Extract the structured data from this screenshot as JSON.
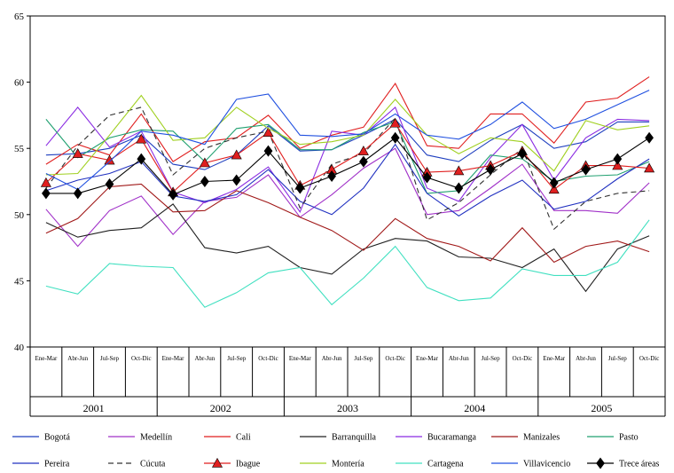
{
  "chart_data": {
    "type": "line",
    "title": "",
    "xlabel": "",
    "ylabel": "",
    "ylim": [
      40,
      65
    ],
    "yticks": [
      40,
      45,
      50,
      55,
      60,
      65
    ],
    "grid": false,
    "legend": "bottom",
    "x": [
      "Ene-Mar",
      "Abr-Jun",
      "Jul-Sep",
      "Oct-Dic",
      "Ene-Mar",
      "Abr-Jun",
      "Jul-Sep",
      "Oct-Dic",
      "Ene-Mar",
      "Abr-Jun",
      "Jul-Sep",
      "Oct-Dic",
      "Ene-Mar",
      "Abr-Jun",
      "Jul-Sep",
      "Oct-Dic",
      "Ene-Mar",
      "Abr-Jun",
      "Jul-Sep",
      "Oct-Dic"
    ],
    "years": [
      "2001",
      "2002",
      "2003",
      "2004",
      "2005"
    ],
    "series": [
      {
        "name": "Bogotá",
        "color": "#1f3fbf",
        "dash": "",
        "marker": "none",
        "values": [
          54.5,
          54.6,
          55.0,
          56.0,
          53.8,
          53.4,
          54.5,
          56.7,
          54.8,
          54.9,
          56.0,
          57.2,
          54.5,
          54.0,
          55.6,
          56.8,
          55.0,
          55.5,
          57.0,
          57.0
        ]
      },
      {
        "name": "Medellín",
        "color": "#a030c8",
        "dash": "",
        "marker": "none",
        "values": [
          50.4,
          47.6,
          50.3,
          51.4,
          48.5,
          51.0,
          51.3,
          53.0,
          49.8,
          51.5,
          53.5,
          55.0,
          50.0,
          50.3,
          52.0,
          53.8,
          50.3,
          50.3,
          50.1,
          52.4
        ]
      },
      {
        "name": "Cali",
        "color": "#e01f1f",
        "dash": "",
        "marker": "none",
        "values": [
          53.8,
          55.3,
          54.5,
          57.6,
          54.0,
          55.5,
          55.8,
          57.5,
          55.0,
          56.0,
          56.6,
          59.9,
          55.2,
          55.0,
          57.6,
          57.6,
          55.4,
          58.5,
          58.8,
          60.4
        ]
      },
      {
        "name": "Barranquilla",
        "color": "#202020",
        "dash": "",
        "marker": "none",
        "values": [
          49.4,
          48.3,
          48.8,
          49.0,
          50.8,
          47.5,
          47.1,
          47.6,
          46.0,
          45.5,
          47.4,
          48.2,
          48.0,
          46.8,
          46.7,
          46.0,
          47.4,
          44.2,
          47.4,
          48.4
        ]
      },
      {
        "name": "Bucaramanga",
        "color": "#8a2be2",
        "dash": "",
        "marker": "none",
        "values": [
          55.2,
          58.1,
          55.1,
          56.3,
          51.7,
          50.9,
          51.9,
          53.6,
          50.2,
          56.3,
          56.0,
          58.1,
          52.0,
          51.0,
          54.3,
          56.8,
          52.6,
          55.8,
          57.2,
          57.1
        ]
      },
      {
        "name": "Manizales",
        "color": "#a01818",
        "dash": "",
        "marker": "none",
        "values": [
          48.6,
          49.7,
          52.1,
          52.3,
          50.2,
          50.3,
          51.8,
          50.9,
          49.8,
          48.8,
          47.3,
          49.7,
          48.2,
          47.6,
          46.5,
          49.0,
          46.4,
          47.6,
          48.0,
          47.2
        ]
      },
      {
        "name": "Pasto",
        "color": "#20a070",
        "dash": "",
        "marker": "none",
        "values": [
          57.2,
          54.3,
          55.8,
          56.4,
          56.3,
          54.0,
          56.5,
          56.8,
          54.9,
          54.9,
          56.2,
          57.0,
          51.6,
          51.8,
          54.5,
          54.2,
          52.5,
          52.9,
          53.0,
          54.0
        ]
      },
      {
        "name": "Pereira",
        "color": "#2030c0",
        "dash": "",
        "marker": "none",
        "values": [
          51.8,
          52.6,
          53.1,
          54.0,
          51.4,
          51.0,
          51.5,
          53.4,
          51.0,
          50.0,
          52.0,
          55.3,
          51.6,
          49.9,
          51.4,
          52.6,
          50.4,
          51.0,
          52.7,
          54.2
        ]
      },
      {
        "name": "Cúcuta",
        "color": "#303030",
        "dash": "6,4",
        "marker": "none",
        "values": [
          52.0,
          55.2,
          57.5,
          58.1,
          53.0,
          55.0,
          55.8,
          56.3,
          50.5,
          53.8,
          54.6,
          57.3,
          49.6,
          50.9,
          53.0,
          55.0,
          48.9,
          51.0,
          51.6,
          51.8
        ]
      },
      {
        "name": "Ibague",
        "color": "#e01f1f",
        "dash": "",
        "marker": "triangle",
        "values": [
          52.4,
          54.6,
          54.1,
          55.7,
          51.7,
          53.9,
          54.5,
          56.2,
          52.2,
          53.4,
          54.8,
          56.9,
          53.2,
          53.3,
          53.7,
          54.8,
          51.9,
          53.7,
          53.7,
          53.5
        ]
      },
      {
        "name": "Montería",
        "color": "#a0d020",
        "dash": "",
        "marker": "none",
        "values": [
          53.0,
          53.1,
          56.0,
          59.0,
          55.6,
          55.8,
          58.1,
          56.5,
          55.3,
          55.5,
          56.0,
          58.7,
          56.0,
          54.6,
          55.8,
          55.5,
          53.3,
          57.1,
          56.4,
          56.7
        ]
      },
      {
        "name": "Cartagena",
        "color": "#40e0c0",
        "dash": "",
        "marker": "none",
        "values": [
          44.6,
          44.0,
          46.3,
          46.1,
          46.0,
          43.0,
          44.1,
          45.6,
          46.0,
          43.2,
          45.2,
          47.6,
          44.5,
          43.5,
          43.7,
          45.9,
          45.4,
          45.4,
          46.4,
          49.6
        ]
      },
      {
        "name": "Villavicencio",
        "color": "#2050e0",
        "dash": "",
        "marker": "none",
        "values": [
          53.1,
          51.9,
          54.0,
          56.3,
          56.0,
          55.3,
          58.7,
          59.1,
          56.0,
          55.9,
          56.1,
          57.6,
          56.0,
          55.7,
          56.8,
          58.5,
          56.5,
          57.2,
          58.3,
          59.4
        ]
      },
      {
        "name": "Trece áreas",
        "color": "#000000",
        "dash": "",
        "marker": "diamond",
        "values": [
          51.6,
          51.6,
          52.3,
          54.2,
          51.5,
          52.5,
          52.6,
          54.8,
          52.0,
          52.9,
          54.0,
          55.8,
          52.8,
          52.0,
          53.4,
          54.6,
          52.4,
          53.4,
          54.2,
          55.8
        ]
      }
    ]
  }
}
